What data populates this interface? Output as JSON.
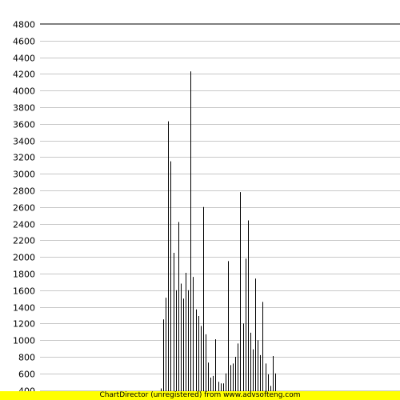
{
  "chart_data": {
    "type": "bar",
    "title": "",
    "xlabel": "",
    "ylabel": "",
    "ylim": [
      400,
      4800
    ],
    "yticks": [
      400,
      600,
      800,
      1000,
      1200,
      1400,
      1600,
      1800,
      2000,
      2200,
      2400,
      2600,
      2800,
      3000,
      3200,
      3400,
      3600,
      3800,
      4000,
      4200,
      4400,
      4600,
      4800
    ],
    "grid": true,
    "x_axis_labels_visible": false,
    "bar_color": "#000000",
    "values": [
      420,
      1250,
      1510,
      3630,
      3150,
      2050,
      1600,
      2420,
      1680,
      1500,
      1810,
      1600,
      4230,
      1760,
      1370,
      1290,
      1170,
      2600,
      1070,
      730,
      550,
      570,
      1010,
      500,
      480,
      480,
      600,
      1950,
      700,
      720,
      800,
      960,
      2780,
      1200,
      1980,
      2440,
      1090,
      890,
      1740,
      1000,
      820,
      1460,
      720,
      590,
      450,
      810,
      600
    ]
  },
  "watermark": {
    "text": "ChartDirector (unregistered) from www.advsofteng.com",
    "background": "#ffff00"
  }
}
